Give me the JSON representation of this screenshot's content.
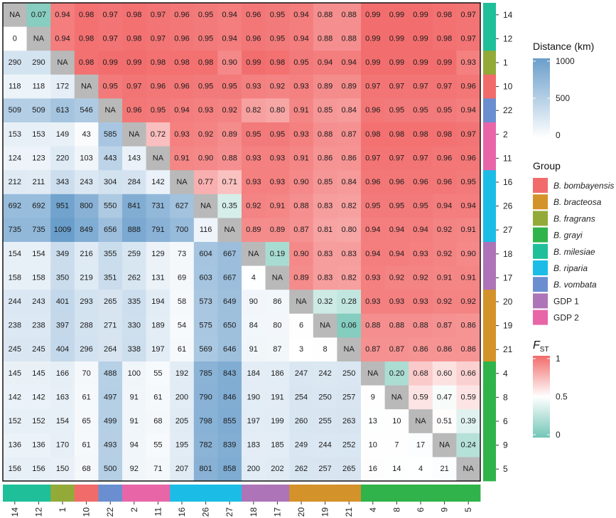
{
  "chart_data": {
    "type": "heatmap",
    "title": "",
    "rows": [
      "14",
      "12",
      "1",
      "10",
      "22",
      "2",
      "11",
      "16",
      "26",
      "27",
      "18",
      "17",
      "20",
      "19",
      "21",
      "4",
      "8",
      "6",
      "9",
      "5"
    ],
    "columns": [
      "14",
      "12",
      "1",
      "10",
      "22",
      "2",
      "11",
      "16",
      "26",
      "27",
      "18",
      "17",
      "20",
      "19",
      "21",
      "4",
      "8",
      "6",
      "9",
      "5"
    ],
    "row_groups": [
      "B. milesiae",
      "B. milesiae",
      "B. fragrans",
      "B. bombayensis",
      "B. vombata",
      "GDP 2",
      "GDP 2",
      "B. riparia",
      "B. riparia",
      "B. riparia",
      "GDP 1",
      "GDP 1",
      "B. bracteosa",
      "B. bracteosa",
      "B. bracteosa",
      "B. grayi",
      "B. grayi",
      "B. grayi",
      "B. grayi",
      "B. grayi"
    ],
    "matrix": [
      [
        "NA",
        "0.07",
        "0.94",
        "0.98",
        "0.97",
        "0.98",
        "0.97",
        "0.96",
        "0.95",
        "0.94",
        "0.96",
        "0.95",
        "0.94",
        "0.88",
        "0.88",
        "0.99",
        "0.99",
        "0.99",
        "0.98",
        "0.97"
      ],
      [
        "0",
        "NA",
        "0.94",
        "0.98",
        "0.97",
        "0.98",
        "0.97",
        "0.96",
        "0.95",
        "0.94",
        "0.96",
        "0.95",
        "0.94",
        "0.88",
        "0.88",
        "0.99",
        "0.99",
        "0.99",
        "0.98",
        "0.97"
      ],
      [
        "290",
        "290",
        "NA",
        "0.98",
        "0.99",
        "0.99",
        "0.98",
        "0.98",
        "0.98",
        "0.90",
        "0.99",
        "0.98",
        "0.95",
        "0.94",
        "0.94",
        "0.99",
        "0.99",
        "0.99",
        "0.99",
        "0.93"
      ],
      [
        "118",
        "118",
        "172",
        "NA",
        "0.95",
        "0.97",
        "0.96",
        "0.96",
        "0.95",
        "0.95",
        "0.93",
        "0.92",
        "0.93",
        "0.89",
        "0.89",
        "0.97",
        "0.97",
        "0.97",
        "0.97",
        "0.96"
      ],
      [
        "509",
        "509",
        "613",
        "546",
        "NA",
        "0.96",
        "0.95",
        "0.94",
        "0.93",
        "0.92",
        "0.82",
        "0.80",
        "0.91",
        "0.85",
        "0.84",
        "0.96",
        "0.95",
        "0.95",
        "0.95",
        "0.94"
      ],
      [
        "153",
        "153",
        "149",
        "43",
        "585",
        "NA",
        "0.72",
        "0.93",
        "0.92",
        "0.89",
        "0.95",
        "0.95",
        "0.93",
        "0.88",
        "0.87",
        "0.98",
        "0.98",
        "0.98",
        "0.98",
        "0.97"
      ],
      [
        "124",
        "123",
        "220",
        "103",
        "443",
        "143",
        "NA",
        "0.91",
        "0.90",
        "0.88",
        "0.93",
        "0.93",
        "0.91",
        "0.86",
        "0.86",
        "0.97",
        "0.97",
        "0.97",
        "0.96",
        "0.96"
      ],
      [
        "212",
        "211",
        "343",
        "243",
        "304",
        "284",
        "142",
        "NA",
        "0.77",
        "0.71",
        "0.93",
        "0.93",
        "0.90",
        "0.85",
        "0.84",
        "0.96",
        "0.96",
        "0.96",
        "0.96",
        "0.95"
      ],
      [
        "692",
        "692",
        "951",
        "800",
        "550",
        "841",
        "731",
        "627",
        "NA",
        "0.35",
        "0.92",
        "0.91",
        "0.88",
        "0.83",
        "0.82",
        "0.95",
        "0.95",
        "0.95",
        "0.94",
        "0.94"
      ],
      [
        "735",
        "735",
        "1009",
        "849",
        "656",
        "888",
        "791",
        "700",
        "116",
        "NA",
        "0.89",
        "0.89",
        "0.87",
        "0.81",
        "0.80",
        "0.94",
        "0.94",
        "0.94",
        "0.92",
        "0.91"
      ],
      [
        "154",
        "154",
        "349",
        "216",
        "355",
        "259",
        "129",
        "73",
        "604",
        "667",
        "NA",
        "0.19",
        "0.90",
        "0.83",
        "0.83",
        "0.94",
        "0.94",
        "0.93",
        "0.92",
        "0.90"
      ],
      [
        "158",
        "158",
        "350",
        "219",
        "351",
        "262",
        "131",
        "69",
        "603",
        "667",
        "4",
        "NA",
        "0.89",
        "0.83",
        "0.82",
        "0.93",
        "0.92",
        "0.92",
        "0.91",
        "0.91"
      ],
      [
        "244",
        "243",
        "401",
        "293",
        "265",
        "335",
        "194",
        "58",
        "573",
        "649",
        "90",
        "86",
        "NA",
        "0.32",
        "0.28",
        "0.93",
        "0.93",
        "0.93",
        "0.92",
        "0.92"
      ],
      [
        "238",
        "238",
        "397",
        "288",
        "271",
        "330",
        "189",
        "54",
        "575",
        "650",
        "84",
        "80",
        "6",
        "NA",
        "0.06",
        "0.88",
        "0.88",
        "0.88",
        "0.87",
        "0.86"
      ],
      [
        "245",
        "245",
        "404",
        "296",
        "264",
        "338",
        "197",
        "61",
        "569",
        "646",
        "91",
        "87",
        "3",
        "8",
        "NA",
        "0.87",
        "0.87",
        "0.86",
        "0.86",
        "0.86"
      ],
      [
        "145",
        "145",
        "166",
        "70",
        "488",
        "100",
        "55",
        "192",
        "785",
        "843",
        "184",
        "186",
        "247",
        "242",
        "250",
        "NA",
        "0.20",
        "0.68",
        "0.60",
        "0.66"
      ],
      [
        "142",
        "142",
        "163",
        "61",
        "497",
        "91",
        "61",
        "200",
        "790",
        "846",
        "190",
        "191",
        "254",
        "250",
        "257",
        "9",
        "NA",
        "0.59",
        "0.47",
        "0.59"
      ],
      [
        "152",
        "152",
        "154",
        "65",
        "499",
        "91",
        "68",
        "205",
        "798",
        "855",
        "197",
        "199",
        "260",
        "255",
        "263",
        "13",
        "10",
        "NA",
        "0.51",
        "0.39"
      ],
      [
        "136",
        "136",
        "170",
        "61",
        "493",
        "94",
        "55",
        "195",
        "782",
        "839",
        "183",
        "185",
        "249",
        "244",
        "252",
        "10",
        "7",
        "17",
        "NA",
        "0.24"
      ],
      [
        "156",
        "156",
        "150",
        "68",
        "500",
        "92",
        "71",
        "207",
        "801",
        "858",
        "200",
        "202",
        "262",
        "257",
        "265",
        "16",
        "14",
        "4",
        "21",
        "NA"
      ]
    ],
    "distance_scale": {
      "title": "Distance (km)",
      "min": 0,
      "max": 1000,
      "ticks": [
        0,
        500,
        1000
      ],
      "low_color": "#ffffff",
      "high_color": "#6a9ecb"
    },
    "fst_scale": {
      "title_main": "F",
      "title_sub": "ST",
      "min": 0,
      "mid": 0.5,
      "max": 1,
      "ticks": [
        0,
        0.5,
        1
      ],
      "low_color": "#73c6b6",
      "mid_color": "#ffffff",
      "high_color": "#f26b6b"
    },
    "group_legend": {
      "title": "Group",
      "items": [
        {
          "label": "B. bombayensis",
          "color": "#f26b6b",
          "italic": true
        },
        {
          "label": "B. bracteosa",
          "color": "#d4922a",
          "italic": true
        },
        {
          "label": "B. fragrans",
          "color": "#93aa39",
          "italic": true
        },
        {
          "label": "B. grayi",
          "color": "#2fb34a",
          "italic": true
        },
        {
          "label": "B. milesiae",
          "color": "#1fbf9a",
          "italic": true
        },
        {
          "label": "B. riparia",
          "color": "#1bbde6",
          "italic": true
        },
        {
          "label": "B. vombata",
          "color": "#6a8ed0",
          "italic": true
        },
        {
          "label": "GDP 1",
          "color": "#ad74b7",
          "italic": false
        },
        {
          "label": "GDP 2",
          "color": "#e866a8",
          "italic": false
        }
      ]
    },
    "na_color": "#b9b9b9"
  }
}
